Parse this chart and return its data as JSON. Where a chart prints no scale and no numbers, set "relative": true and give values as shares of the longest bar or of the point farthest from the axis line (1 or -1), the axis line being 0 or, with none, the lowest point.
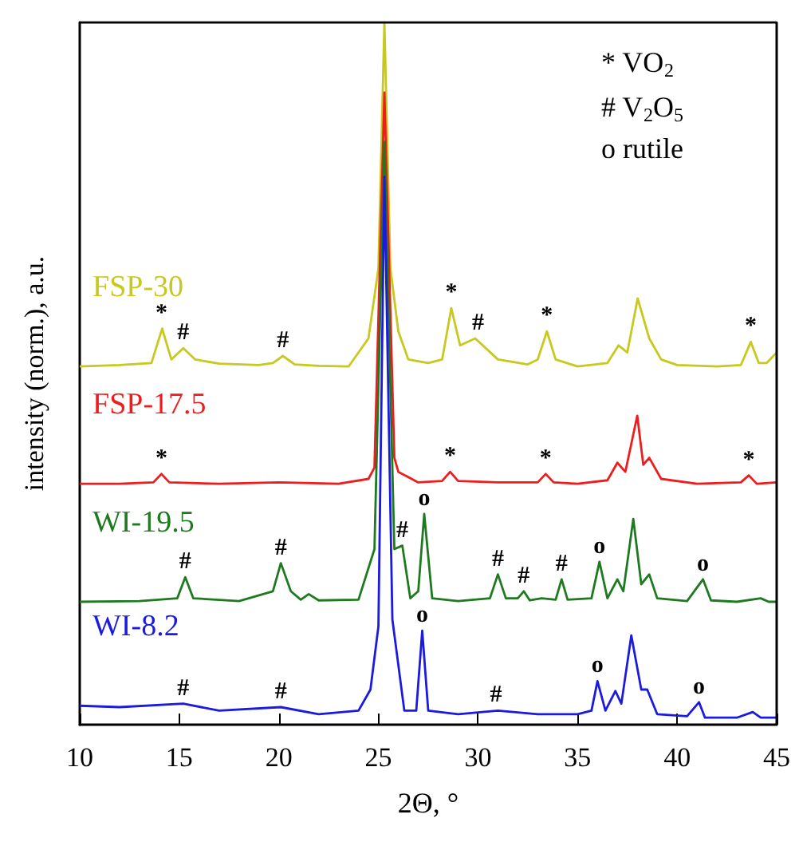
{
  "chart_data": {
    "type": "line",
    "relative": true,
    "xlabel": "2Θ, °",
    "ylabel": "intensity (norm.), a.u.",
    "xlim": [
      10,
      45
    ],
    "xticks": [
      10,
      15,
      20,
      25,
      30,
      35,
      40,
      45
    ],
    "grid": false,
    "legend": false,
    "marker": "none",
    "line_style": "solid",
    "series": [
      {
        "name": "FSP-30",
        "color": "#c8c81e",
        "x": [
          10,
          12,
          13.6,
          14.14,
          14.6,
          15.2,
          15.8,
          17,
          19,
          19.7,
          20.2,
          20.8,
          22,
          23.5,
          24.5,
          25.0,
          25.3,
          25.6,
          26,
          26.5,
          27.5,
          28.2,
          28.66,
          29.1,
          29.86,
          31,
          32.5,
          33.0,
          33.46,
          33.9,
          35,
          36.5,
          37.06,
          37.5,
          38.02,
          38.6,
          39.2,
          40,
          42,
          43.2,
          43.7,
          44.1,
          44.5,
          45
        ],
        "values": [
          0.51,
          0.512,
          0.515,
          0.564,
          0.52,
          0.536,
          0.52,
          0.514,
          0.512,
          0.515,
          0.525,
          0.513,
          0.511,
          0.51,
          0.55,
          0.65,
          1.0,
          0.65,
          0.56,
          0.52,
          0.515,
          0.52,
          0.593,
          0.54,
          0.55,
          0.52,
          0.513,
          0.52,
          0.56,
          0.52,
          0.51,
          0.515,
          0.54,
          0.53,
          0.607,
          0.55,
          0.52,
          0.512,
          0.51,
          0.512,
          0.545,
          0.515,
          0.515,
          0.53
        ]
      },
      {
        "name": "FSP-17.5",
        "color": "#ee1c1c",
        "x": [
          10,
          12,
          13.7,
          14.1,
          14.5,
          17,
          20,
          23,
          24.5,
          24.8,
          25.3,
          25.8,
          26,
          27,
          28.2,
          28.6,
          29,
          31,
          33,
          33.4,
          33.8,
          35,
          36.5,
          37.0,
          37.4,
          38.0,
          38.3,
          38.6,
          39.2,
          41,
          43.2,
          43.6,
          44,
          45
        ],
        "values": [
          0.343,
          0.343,
          0.345,
          0.357,
          0.345,
          0.343,
          0.345,
          0.343,
          0.35,
          0.366,
          0.9,
          0.38,
          0.36,
          0.345,
          0.347,
          0.36,
          0.347,
          0.345,
          0.345,
          0.357,
          0.345,
          0.343,
          0.348,
          0.373,
          0.36,
          0.44,
          0.37,
          0.38,
          0.35,
          0.343,
          0.345,
          0.355,
          0.343,
          0.345
        ]
      },
      {
        "name": "WI-19.5",
        "color": "#1e7a1e",
        "x": [
          10,
          13,
          14.9,
          15.3,
          15.7,
          18,
          19.7,
          20.1,
          20.6,
          21.1,
          21.5,
          22,
          24,
          24.8,
          25.3,
          25.8,
          26.2,
          26.6,
          27.0,
          27.3,
          27.7,
          29,
          30.6,
          31.0,
          31.4,
          32.0,
          32.3,
          32.6,
          33.2,
          33.9,
          34.2,
          34.5,
          35.7,
          36.1,
          36.5,
          37.0,
          37.3,
          37.8,
          38.2,
          38.6,
          39,
          40.5,
          41.3,
          41.7,
          43,
          44.2,
          44.6,
          45
        ],
        "values": [
          0.175,
          0.176,
          0.18,
          0.21,
          0.18,
          0.176,
          0.19,
          0.23,
          0.19,
          0.178,
          0.186,
          0.177,
          0.178,
          0.25,
          0.83,
          0.25,
          0.255,
          0.18,
          0.19,
          0.3,
          0.18,
          0.176,
          0.18,
          0.214,
          0.18,
          0.18,
          0.19,
          0.177,
          0.18,
          0.178,
          0.207,
          0.178,
          0.18,
          0.232,
          0.18,
          0.207,
          0.19,
          0.293,
          0.2,
          0.214,
          0.18,
          0.176,
          0.207,
          0.177,
          0.175,
          0.18,
          0.175,
          0.175
        ]
      },
      {
        "name": "WI-8.2",
        "color": "#1a1ae0",
        "x": [
          10,
          12,
          15.2,
          17,
          20.1,
          22,
          24,
          24.6,
          25.0,
          25.3,
          25.7,
          26.3,
          26.9,
          27.2,
          27.5,
          29,
          31,
          33,
          35,
          35.7,
          36.0,
          36.4,
          36.9,
          37.2,
          37.7,
          38.2,
          38.5,
          39,
          40.5,
          41.1,
          41.4,
          43,
          43.8,
          44.2,
          45
        ],
        "values": [
          0.027,
          0.025,
          0.03,
          0.02,
          0.025,
          0.015,
          0.02,
          0.05,
          0.14,
          0.78,
          0.15,
          0.02,
          0.02,
          0.134,
          0.02,
          0.015,
          0.02,
          0.015,
          0.015,
          0.02,
          0.062,
          0.02,
          0.048,
          0.03,
          0.127,
          0.05,
          0.05,
          0.015,
          0.012,
          0.032,
          0.01,
          0.01,
          0.018,
          0.01,
          0.01
        ]
      }
    ],
    "annotations": [
      "* VO$_{2}$",
      "# V$_{2}$O$_{5}$",
      "o rutile",
      {
        "text": "*",
        "x": 14.1,
        "y": 0.564
      },
      {
        "text": "#",
        "x": 15.2,
        "y": 0.536
      },
      {
        "text": "#",
        "x": 20.2,
        "y": 0.525
      },
      {
        "text": "*",
        "x": 28.66,
        "y": 0.593
      },
      {
        "text": "#",
        "x": 30.0,
        "y": 0.55
      },
      {
        "text": "*",
        "x": 33.46,
        "y": 0.56
      },
      {
        "text": "*",
        "x": 43.7,
        "y": 0.545
      },
      {
        "text": "*",
        "x": 14.1,
        "y": 0.357
      },
      {
        "text": "*",
        "x": 28.6,
        "y": 0.36
      },
      {
        "text": "*",
        "x": 33.4,
        "y": 0.357
      },
      {
        "text": "*",
        "x": 43.6,
        "y": 0.355
      },
      {
        "text": "#",
        "x": 15.3,
        "y": 0.21
      },
      {
        "text": "#",
        "x": 20.1,
        "y": 0.23
      },
      {
        "text": "#",
        "x": 26.2,
        "y": 0.255
      },
      {
        "text": "o",
        "x": 27.3,
        "y": 0.3
      },
      {
        "text": "#",
        "x": 31.0,
        "y": 0.214
      },
      {
        "text": "#",
        "x": 32.3,
        "y": 0.19
      },
      {
        "text": "#",
        "x": 34.2,
        "y": 0.207
      },
      {
        "text": "o",
        "x": 36.1,
        "y": 0.232
      },
      {
        "text": "o",
        "x": 41.3,
        "y": 0.207
      },
      {
        "text": "#",
        "x": 15.2,
        "y": 0.03
      },
      {
        "text": "#",
        "x": 20.1,
        "y": 0.025
      },
      {
        "text": "o",
        "x": 27.2,
        "y": 0.134
      },
      {
        "text": "#",
        "x": 30.9,
        "y": 0.02
      },
      {
        "text": "o",
        "x": 36.0,
        "y": 0.062
      },
      {
        "text": "o",
        "x": 41.1,
        "y": 0.032
      }
    ]
  }
}
